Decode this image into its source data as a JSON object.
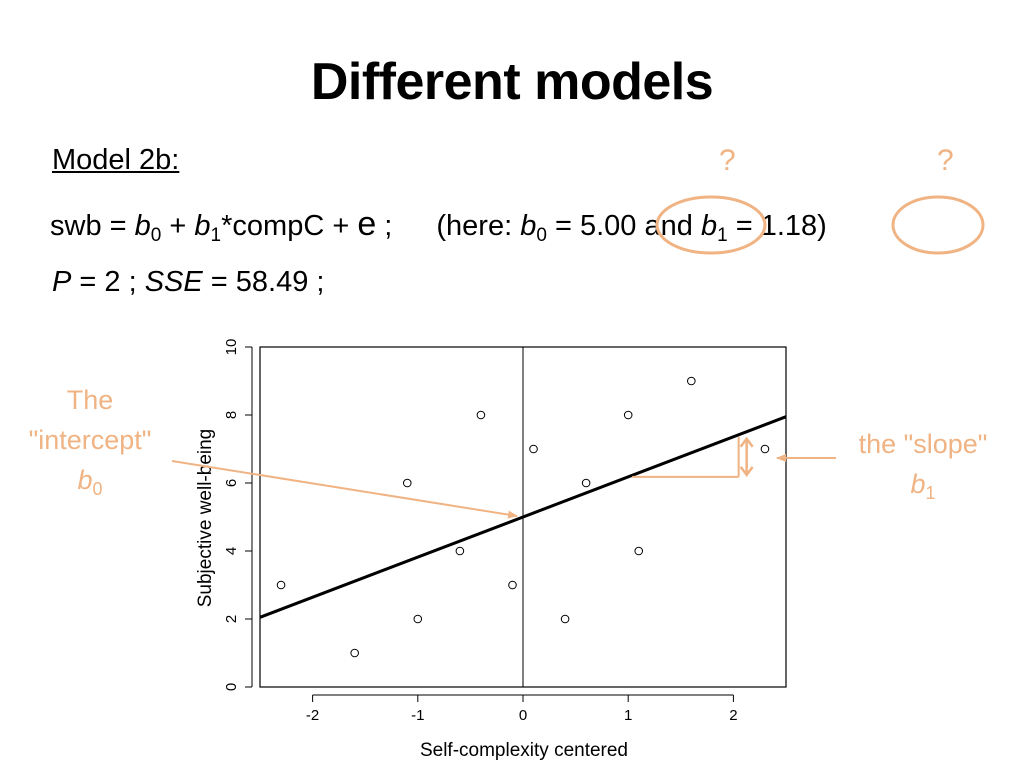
{
  "slide": {
    "title": "Different models",
    "model_label": "Model 2b:",
    "equation": {
      "lhs": "swb = ",
      "b": "b",
      "sub0": "0",
      "sub1": "1",
      "plus": " + ",
      "compc": "*compC + ",
      "e": "e",
      "semi": " ;",
      "here": "(here: ",
      "eq": " = ",
      "b0_value": "5.00",
      "and": " and ",
      "b1_value": "1.18",
      "close": ")"
    },
    "stats": {
      "p_label": "P",
      "p_text": " = 2 ; ",
      "sse_label": "SSE",
      "sse_text": " = 58.49 ;"
    },
    "question_mark": "?",
    "intercept_note": {
      "line1": "The",
      "line2": "\"intercept\"",
      "b": "b",
      "sub": "0"
    },
    "slope_note": {
      "line1": "the \"slope\"",
      "b": "b",
      "sub": "1"
    }
  },
  "accent_color": "#f0b383",
  "chart_data": {
    "type": "scatter",
    "xlabel": "Self-complexity centered",
    "ylabel": "Subjective well-being",
    "xlim": [
      -2.5,
      2.5
    ],
    "ylim": [
      0,
      10
    ],
    "xticks": [
      -2,
      -1,
      0,
      1,
      2
    ],
    "yticks": [
      0,
      2,
      4,
      6,
      8,
      10
    ],
    "points": [
      {
        "x": -2.3,
        "y": 3
      },
      {
        "x": -1.6,
        "y": 1
      },
      {
        "x": -1.1,
        "y": 6
      },
      {
        "x": -1.0,
        "y": 2
      },
      {
        "x": -0.6,
        "y": 4
      },
      {
        "x": -0.4,
        "y": 8
      },
      {
        "x": -0.1,
        "y": 3
      },
      {
        "x": 0.1,
        "y": 7
      },
      {
        "x": 0.4,
        "y": 2
      },
      {
        "x": 0.6,
        "y": 6
      },
      {
        "x": 1.0,
        "y": 8
      },
      {
        "x": 1.1,
        "y": 4
      },
      {
        "x": 1.6,
        "y": 9
      },
      {
        "x": 2.3,
        "y": 7
      }
    ],
    "regression": {
      "intercept": 5.0,
      "slope": 1.18
    },
    "reference_x": 0,
    "grid": false
  }
}
